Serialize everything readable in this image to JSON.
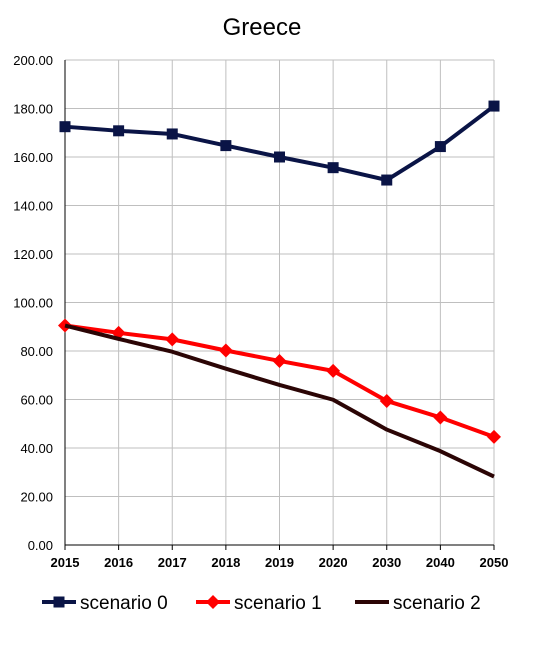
{
  "chart_data": {
    "type": "line",
    "title": "Greece",
    "xlabel": "",
    "ylabel": "",
    "categories": [
      "2015",
      "2016",
      "2017",
      "2018",
      "2019",
      "2020",
      "2030",
      "2040",
      "2050"
    ],
    "ylim": [
      0,
      200
    ],
    "yticks": [
      "0.00",
      "20.00",
      "40.00",
      "60.00",
      "80.00",
      "100.00",
      "120.00",
      "140.00",
      "160.00",
      "180.00",
      "200.00"
    ],
    "grid": true,
    "legend_position": "bottom",
    "series": [
      {
        "name": "scenario 0",
        "color": "#0a1446",
        "marker": "square",
        "values": [
          172.5,
          170.8,
          169.5,
          164.7,
          160.0,
          155.6,
          150.5,
          164.3,
          181.0
        ]
      },
      {
        "name": "scenario 1",
        "color": "#ff0000",
        "marker": "diamond",
        "values": [
          90.5,
          87.5,
          84.8,
          80.2,
          75.9,
          71.8,
          59.4,
          52.6,
          44.6
        ]
      },
      {
        "name": "scenario 2",
        "color": "#2b0505",
        "marker": "none",
        "values": [
          90.5,
          85.0,
          79.7,
          72.7,
          66.0,
          59.9,
          47.6,
          38.7,
          28.2
        ]
      }
    ]
  }
}
